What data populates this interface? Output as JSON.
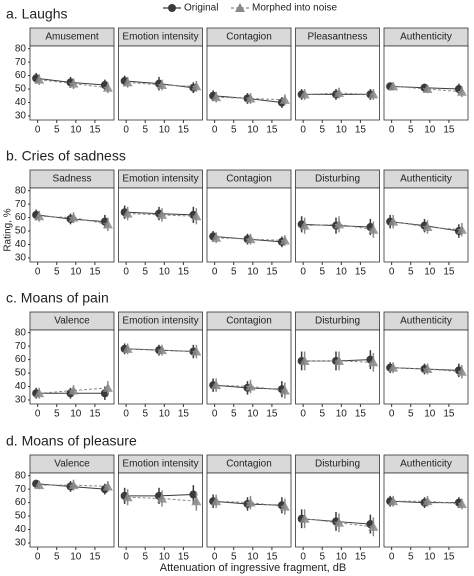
{
  "figure": {
    "x_label": "Attenuation of ingressive fragment, dB",
    "y_label": "Rating, %",
    "xlim": [
      -2,
      20
    ],
    "xticks": [
      0,
      5,
      10,
      15
    ],
    "ylim": [
      27,
      82
    ],
    "yticks": [
      30,
      40,
      50,
      60,
      70,
      80
    ],
    "legend": [
      {
        "name": "Original",
        "color": "#3a3a3a"
      },
      {
        "name": "Morphed into noise",
        "color": "#8a8a8a"
      }
    ]
  },
  "chart_data": [
    {
      "type": "line",
      "title": "a. Laughs",
      "facets": [
        {
          "title": "Amusement",
          "x": [
            0,
            9,
            18
          ],
          "series": [
            {
              "values": [
                58,
                55,
                53
              ],
              "errors": [
                4,
                4,
                4
              ]
            },
            {
              "values": [
                57,
                54,
                51
              ],
              "errors": [
                4,
                4,
                4
              ]
            }
          ]
        },
        {
          "title": "Emotion intensity",
          "x": [
            0,
            9,
            18
          ],
          "series": [
            {
              "values": [
                56,
                54,
                51
              ],
              "errors": [
                4,
                5,
                4
              ]
            },
            {
              "values": [
                55,
                53,
                52
              ],
              "errors": [
                4,
                4,
                4
              ]
            }
          ]
        },
        {
          "title": "Contagion",
          "x": [
            0,
            9,
            18
          ],
          "series": [
            {
              "values": [
                45,
                43,
                40
              ],
              "errors": [
                4,
                4,
                4
              ]
            },
            {
              "values": [
                44,
                43,
                42
              ],
              "errors": [
                4,
                4,
                4
              ]
            }
          ]
        },
        {
          "title": "Pleasantness",
          "x": [
            0,
            9,
            18
          ],
          "series": [
            {
              "values": [
                46,
                46,
                46
              ],
              "errors": [
                4,
                4,
                4
              ]
            },
            {
              "values": [
                46,
                47,
                46
              ],
              "errors": [
                4,
                4,
                4
              ]
            }
          ]
        },
        {
          "title": "Authenticity",
          "x": [
            0,
            9,
            18
          ],
          "series": [
            {
              "values": [
                52,
                51,
                50
              ],
              "errors": [
                3,
                3,
                4
              ]
            },
            {
              "values": [
                52,
                50,
                48
              ],
              "errors": [
                3,
                3,
                4
              ]
            }
          ]
        }
      ]
    },
    {
      "type": "line",
      "title": "b. Cries of sadness",
      "facets": [
        {
          "title": "Sadness",
          "x": [
            0,
            9,
            18
          ],
          "series": [
            {
              "values": [
                62,
                59,
                57
              ],
              "errors": [
                4,
                4,
                5
              ]
            },
            {
              "values": [
                61,
                60,
                55
              ],
              "errors": [
                4,
                4,
                5
              ]
            }
          ]
        },
        {
          "title": "Emotion intensity",
          "x": [
            0,
            9,
            18
          ],
          "series": [
            {
              "values": [
                64,
                63,
                62
              ],
              "errors": [
                5,
                5,
                6
              ]
            },
            {
              "values": [
                63,
                62,
                61
              ],
              "errors": [
                5,
                5,
                6
              ]
            }
          ]
        },
        {
          "title": "Contagion",
          "x": [
            0,
            9,
            18
          ],
          "series": [
            {
              "values": [
                46,
                44,
                42
              ],
              "errors": [
                4,
                4,
                4
              ]
            },
            {
              "values": [
                45,
                44,
                43
              ],
              "errors": [
                4,
                4,
                4
              ]
            }
          ]
        },
        {
          "title": "Disturbing",
          "x": [
            0,
            9,
            18
          ],
          "series": [
            {
              "values": [
                55,
                54,
                53
              ],
              "errors": [
                6,
                6,
                6
              ]
            },
            {
              "values": [
                54,
                55,
                51
              ],
              "errors": [
                6,
                6,
                6
              ]
            }
          ]
        },
        {
          "title": "Authenticity",
          "x": [
            0,
            9,
            18
          ],
          "series": [
            {
              "values": [
                57,
                54,
                50
              ],
              "errors": [
                5,
                5,
                5
              ]
            },
            {
              "values": [
                57,
                53,
                51
              ],
              "errors": [
                5,
                5,
                5
              ]
            }
          ]
        }
      ]
    },
    {
      "type": "line",
      "title": "c. Moans of pain",
      "facets": [
        {
          "title": "Valence",
          "x": [
            0,
            9,
            18
          ],
          "series": [
            {
              "values": [
                35,
                35,
                35
              ],
              "errors": [
                4,
                4,
                5
              ]
            },
            {
              "values": [
                35,
                37,
                39
              ],
              "errors": [
                4,
                4,
                5
              ]
            }
          ]
        },
        {
          "title": "Emotion intensity",
          "x": [
            0,
            9,
            18
          ],
          "series": [
            {
              "values": [
                68,
                67,
                66
              ],
              "errors": [
                4,
                4,
                5
              ]
            },
            {
              "values": [
                68,
                67,
                66
              ],
              "errors": [
                4,
                4,
                5
              ]
            }
          ]
        },
        {
          "title": "Contagion",
          "x": [
            0,
            9,
            18
          ],
          "series": [
            {
              "values": [
                41,
                39,
                38
              ],
              "errors": [
                5,
                5,
                6
              ]
            },
            {
              "values": [
                41,
                40,
                37
              ],
              "errors": [
                5,
                5,
                6
              ]
            }
          ]
        },
        {
          "title": "Disturbing",
          "x": [
            0,
            9,
            18
          ],
          "series": [
            {
              "values": [
                59,
                59,
                60
              ],
              "errors": [
                7,
                7,
                7
              ]
            },
            {
              "values": [
                59,
                59,
                58
              ],
              "errors": [
                7,
                7,
                7
              ]
            }
          ]
        },
        {
          "title": "Authenticity",
          "x": [
            0,
            9,
            18
          ],
          "series": [
            {
              "values": [
                54,
                53,
                52
              ],
              "errors": [
                4,
                4,
                5
              ]
            },
            {
              "values": [
                54,
                53,
                51
              ],
              "errors": [
                4,
                4,
                5
              ]
            }
          ]
        }
      ]
    },
    {
      "type": "line",
      "title": "d. Moans of pleasure",
      "facets": [
        {
          "title": "Valence",
          "x": [
            0,
            9,
            18
          ],
          "series": [
            {
              "values": [
                74,
                72,
                70
              ],
              "errors": [
                3,
                4,
                4
              ]
            },
            {
              "values": [
                73,
                73,
                72
              ],
              "errors": [
                3,
                4,
                4
              ]
            }
          ]
        },
        {
          "title": "Emotion intensity",
          "x": [
            0,
            9,
            18
          ],
          "series": [
            {
              "values": [
                65,
                65,
                66
              ],
              "errors": [
                6,
                6,
                7
              ]
            },
            {
              "values": [
                64,
                63,
                61
              ],
              "errors": [
                6,
                6,
                7
              ]
            }
          ]
        },
        {
          "title": "Contagion",
          "x": [
            0,
            9,
            18
          ],
          "series": [
            {
              "values": [
                61,
                59,
                58
              ],
              "errors": [
                5,
                5,
                6
              ]
            },
            {
              "values": [
                61,
                60,
                57
              ],
              "errors": [
                5,
                5,
                6
              ]
            }
          ]
        },
        {
          "title": "Disturbing",
          "x": [
            0,
            9,
            18
          ],
          "series": [
            {
              "values": [
                48,
                46,
                44
              ],
              "errors": [
                7,
                7,
                7
              ]
            },
            {
              "values": [
                48,
                45,
                42
              ],
              "errors": [
                7,
                7,
                7
              ]
            }
          ]
        },
        {
          "title": "Authenticity",
          "x": [
            0,
            9,
            18
          ],
          "series": [
            {
              "values": [
                61,
                60,
                60
              ],
              "errors": [
                4,
                4,
                4
              ]
            },
            {
              "values": [
                61,
                61,
                59
              ],
              "errors": [
                4,
                4,
                4
              ]
            }
          ]
        }
      ]
    }
  ]
}
